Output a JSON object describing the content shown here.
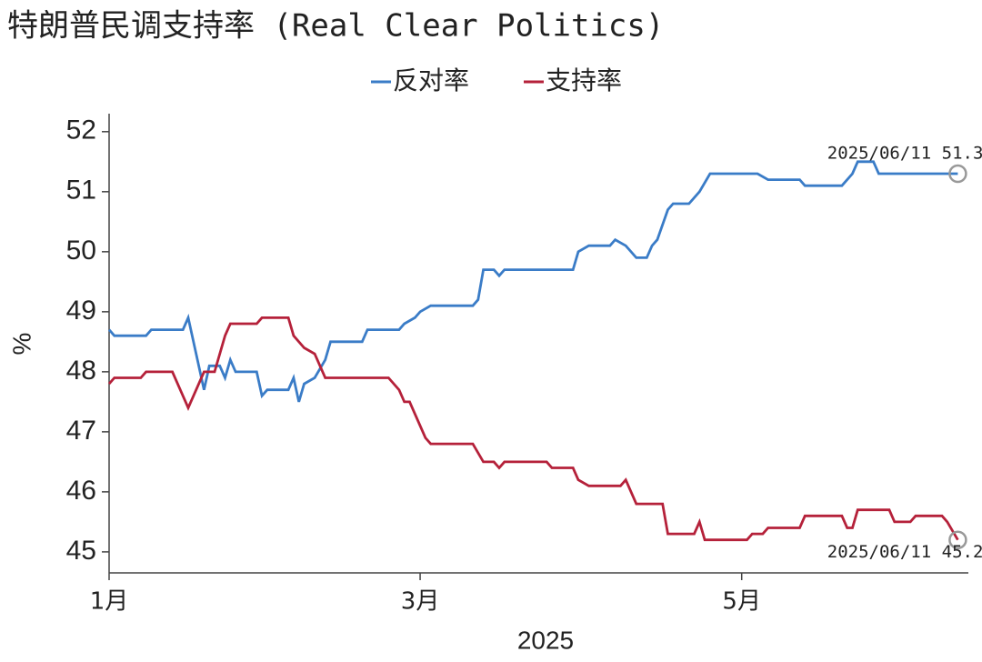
{
  "chart_data": {
    "type": "line",
    "title": "特朗普民调支持率 (Real Clear Politics)",
    "xlabel": "2025",
    "ylabel": "%",
    "xlim": [
      "2025-01-01",
      "2025-06-13"
    ],
    "xticks": [
      {
        "value": "2025-01-01",
        "label": "1月"
      },
      {
        "value": "2025-03-01",
        "label": "3月"
      },
      {
        "value": "2025-05-01",
        "label": "5月"
      }
    ],
    "ylim": [
      44.65,
      52.3
    ],
    "yticks": [
      45,
      46,
      47,
      48,
      49,
      50,
      51,
      52
    ],
    "legend": "top",
    "series": [
      {
        "name": "反对率",
        "color": "#3a7cc7",
        "x": [
          "2025-01-01",
          "2025-01-02",
          "2025-01-08",
          "2025-01-09",
          "2025-01-15",
          "2025-01-16",
          "2025-01-19",
          "2025-01-20",
          "2025-01-22",
          "2025-01-23",
          "2025-01-24",
          "2025-01-25",
          "2025-01-29",
          "2025-01-30",
          "2025-01-31",
          "2025-02-04",
          "2025-02-05",
          "2025-02-06",
          "2025-02-07",
          "2025-02-09",
          "2025-02-11",
          "2025-02-12",
          "2025-02-18",
          "2025-02-19",
          "2025-02-25",
          "2025-02-26",
          "2025-02-28",
          "2025-03-01",
          "2025-03-03",
          "2025-03-11",
          "2025-03-12",
          "2025-03-13",
          "2025-03-15",
          "2025-03-16",
          "2025-03-17",
          "2025-03-30",
          "2025-03-31",
          "2025-04-02",
          "2025-04-06",
          "2025-04-07",
          "2025-04-09",
          "2025-04-11",
          "2025-04-13",
          "2025-04-14",
          "2025-04-15",
          "2025-04-17",
          "2025-04-18",
          "2025-04-21",
          "2025-04-23",
          "2025-04-25",
          "2025-05-04",
          "2025-05-06",
          "2025-05-12",
          "2025-05-13",
          "2025-05-20",
          "2025-05-22",
          "2025-05-23",
          "2025-05-26",
          "2025-05-27",
          "2025-06-11"
        ],
        "values": [
          48.7,
          48.6,
          48.6,
          48.7,
          48.7,
          48.9,
          47.7,
          48.1,
          48.1,
          47.9,
          48.2,
          48.0,
          48.0,
          47.6,
          47.7,
          47.7,
          47.9,
          47.5,
          47.8,
          47.9,
          48.2,
          48.5,
          48.5,
          48.7,
          48.7,
          48.8,
          48.9,
          49.0,
          49.1,
          49.1,
          49.2,
          49.7,
          49.7,
          49.6,
          49.7,
          49.7,
          50.0,
          50.1,
          50.1,
          50.2,
          50.1,
          49.9,
          49.9,
          50.1,
          50.2,
          50.7,
          50.8,
          50.8,
          51.0,
          51.3,
          51.3,
          51.2,
          51.2,
          51.1,
          51.1,
          51.3,
          51.5,
          51.5,
          51.3,
          51.3
        ]
      },
      {
        "name": "支持率",
        "color": "#b5213a",
        "x": [
          "2025-01-01",
          "2025-01-02",
          "2025-01-07",
          "2025-01-08",
          "2025-01-13",
          "2025-01-15",
          "2025-01-16",
          "2025-01-17",
          "2025-01-19",
          "2025-01-21",
          "2025-01-23",
          "2025-01-24",
          "2025-01-29",
          "2025-01-30",
          "2025-02-04",
          "2025-02-05",
          "2025-02-07",
          "2025-02-09",
          "2025-02-11",
          "2025-02-23",
          "2025-02-25",
          "2025-02-26",
          "2025-02-27",
          "2025-03-02",
          "2025-03-03",
          "2025-03-11",
          "2025-03-13",
          "2025-03-15",
          "2025-03-16",
          "2025-03-17",
          "2025-03-25",
          "2025-03-26",
          "2025-03-30",
          "2025-03-31",
          "2025-04-02",
          "2025-04-08",
          "2025-04-09",
          "2025-04-11",
          "2025-04-16",
          "2025-04-17",
          "2025-04-22",
          "2025-04-23",
          "2025-04-24",
          "2025-05-02",
          "2025-05-03",
          "2025-05-05",
          "2025-05-06",
          "2025-05-12",
          "2025-05-13",
          "2025-05-20",
          "2025-05-21",
          "2025-05-22",
          "2025-05-23",
          "2025-05-29",
          "2025-05-30",
          "2025-06-02",
          "2025-06-03",
          "2025-06-08",
          "2025-06-09",
          "2025-06-11"
        ],
        "values": [
          47.8,
          47.9,
          47.9,
          48.0,
          48.0,
          47.6,
          47.4,
          47.6,
          48.0,
          48.0,
          48.6,
          48.8,
          48.8,
          48.9,
          48.9,
          48.6,
          48.4,
          48.3,
          47.9,
          47.9,
          47.7,
          47.5,
          47.5,
          46.9,
          46.8,
          46.8,
          46.5,
          46.5,
          46.4,
          46.5,
          46.5,
          46.4,
          46.4,
          46.2,
          46.1,
          46.1,
          46.2,
          45.8,
          45.8,
          45.3,
          45.3,
          45.5,
          45.2,
          45.2,
          45.3,
          45.3,
          45.4,
          45.4,
          45.6,
          45.6,
          45.4,
          45.4,
          45.7,
          45.7,
          45.5,
          45.5,
          45.6,
          45.6,
          45.5,
          45.2
        ]
      }
    ],
    "annotations": [
      "2025/06/11 51.3",
      "2025/06/11 45.2"
    ]
  }
}
